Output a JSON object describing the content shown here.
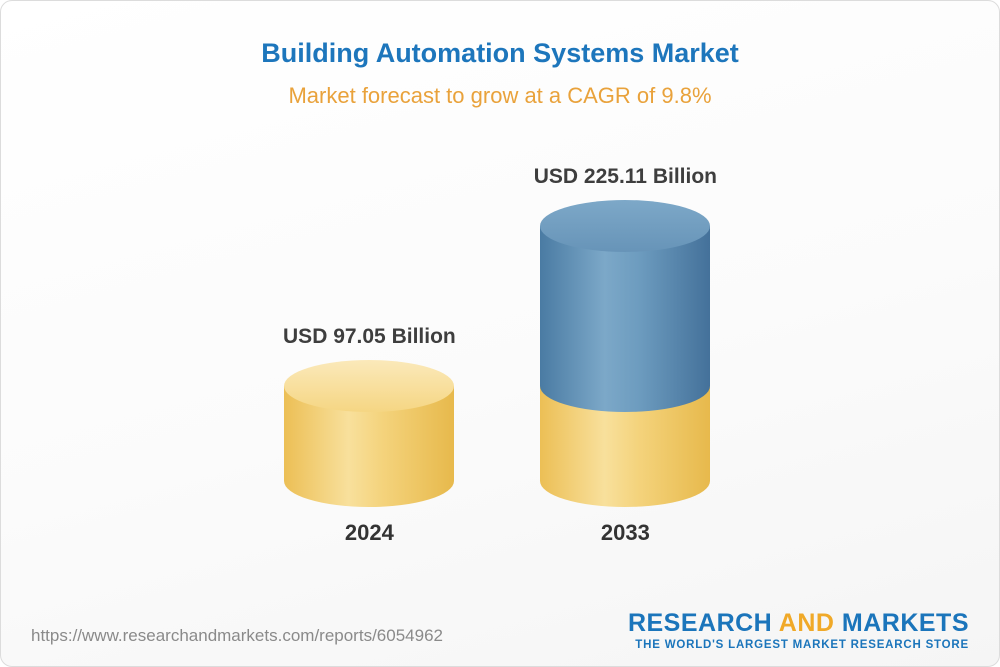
{
  "header": {
    "title": "Building Automation Systems Market",
    "subtitle": "Market forecast to grow at a CAGR of 9.8%"
  },
  "chart_data": {
    "type": "bar",
    "title": "Building Automation Systems Market",
    "subtitle": "Market forecast to grow at a CAGR of 9.8%",
    "categories": [
      "2024",
      "2033"
    ],
    "values": [
      97.05,
      225.11
    ],
    "unit": "USD Billion",
    "value_labels": [
      "USD 97.05 Billion",
      "USD 225.11 Billion"
    ],
    "cagr_percent": 9.8,
    "ylim": [
      0,
      240
    ],
    "grid": false,
    "legend": "none",
    "bar_style": "3d-cylinder",
    "colors": {
      "base_segment": "#F2CE6E",
      "growth_segment": "#5B8BB1",
      "title_text": "#1D76BC",
      "subtitle_text": "#E9A23B",
      "label_text": "#3E3E3E"
    },
    "notes": "2033 cylinder is stacked: gold lower segment equals 2024 value, blue upper segment is forecast growth"
  },
  "footer": {
    "url": "https://www.researchandmarkets.com/reports/6054962",
    "logo": {
      "research": "RESEARCH",
      "and": "AND",
      "markets": "MARKETS",
      "tagline": "THE WORLD'S LARGEST MARKET RESEARCH STORE"
    }
  }
}
